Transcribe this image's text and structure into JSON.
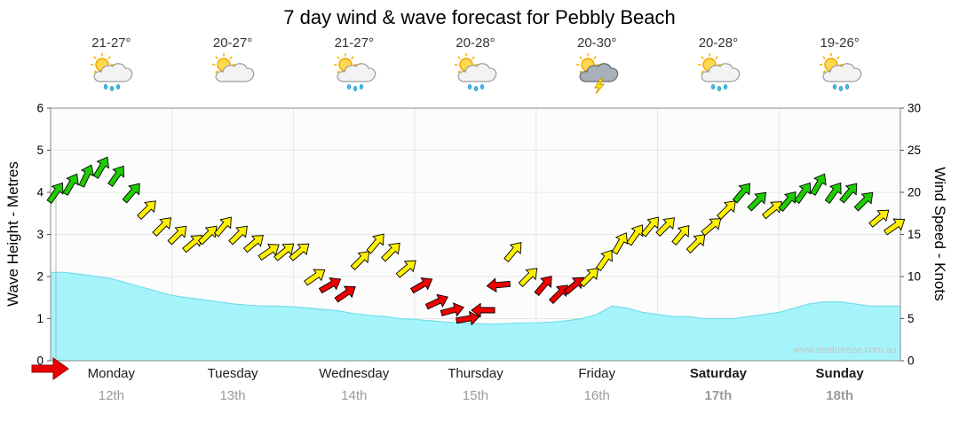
{
  "title": "7 day wind & wave forecast for Pebbly Beach",
  "watermark": "www.seabreeze.com.au",
  "axes": {
    "left_label": "Wave Height - Metres",
    "right_label": "Wind Speed - Knots",
    "left_ticks": [
      0,
      1,
      2,
      3,
      4,
      5,
      6
    ],
    "right_ticks": [
      0,
      5,
      10,
      15,
      20,
      25,
      30
    ],
    "left_max": 6,
    "right_max": 30
  },
  "days": [
    {
      "name": "Monday",
      "date": "12th",
      "temp": "21-27°",
      "icon": "sun-cloud-rain",
      "weekend": false
    },
    {
      "name": "Tuesday",
      "date": "13th",
      "temp": "20-27°",
      "icon": "sun-cloud",
      "weekend": false
    },
    {
      "name": "Wednesday",
      "date": "14th",
      "temp": "21-27°",
      "icon": "sun-cloud-rain",
      "weekend": false
    },
    {
      "name": "Thursday",
      "date": "15th",
      "temp": "20-28°",
      "icon": "sun-cloud-rain",
      "weekend": false
    },
    {
      "name": "Friday",
      "date": "16th",
      "temp": "20-30°",
      "icon": "storm",
      "weekend": false
    },
    {
      "name": "Saturday",
      "date": "17th",
      "temp": "20-28°",
      "icon": "sun-cloud-rain",
      "weekend": true
    },
    {
      "name": "Sunday",
      "date": "18th",
      "temp": "19-26°",
      "icon": "sun-cloud-rain",
      "weekend": true
    }
  ],
  "marker": {
    "shape": "red-arrow-right",
    "color": "#E80000"
  },
  "chart_data": {
    "type": "line",
    "title": "7 day wind & wave forecast for Pebbly Beach",
    "points_per_day": 8,
    "x_days": [
      "Monday 12th",
      "Tuesday 13th",
      "Wednesday 14th",
      "Thursday 15th",
      "Friday 16th",
      "Saturday 17th",
      "Sunday 18th"
    ],
    "series": [
      {
        "name": "Wind Speed",
        "unit": "knots",
        "style": "wind-arrows",
        "ylim": [
          0,
          30
        ],
        "values": [
          20,
          21,
          22,
          23,
          22,
          20,
          18,
          16,
          15,
          14,
          15,
          16,
          15,
          14,
          13,
          13,
          13,
          10,
          9,
          8,
          12,
          14,
          13,
          11,
          9,
          7,
          6,
          5,
          6,
          9,
          13,
          10,
          9,
          8,
          9,
          10,
          12,
          14,
          15,
          16,
          16,
          15,
          14,
          16,
          18,
          20,
          19,
          18,
          19,
          20,
          21,
          20,
          20,
          19,
          17,
          16
        ],
        "directions_deg": [
          -55,
          -60,
          -65,
          -60,
          -55,
          -50,
          -45,
          -45,
          -45,
          -40,
          -45,
          -50,
          -45,
          -40,
          -35,
          -40,
          -40,
          -35,
          -30,
          -35,
          -45,
          -50,
          -45,
          -40,
          -30,
          -25,
          -15,
          -10,
          180,
          175,
          -50,
          -45,
          -50,
          -45,
          -40,
          -45,
          -55,
          -60,
          -55,
          -50,
          -45,
          -50,
          -45,
          -40,
          -45,
          -50,
          -45,
          -40,
          -50,
          -55,
          -60,
          -55,
          -50,
          -45,
          -40,
          -35
        ],
        "colors": {
          "green": "#1FCC00",
          "yellow": "#FFF000",
          "red": "#F00000"
        },
        "color_rules": {
          "green_min_knots": 19,
          "red_max_knots": 9
        }
      },
      {
        "name": "Wave Height",
        "unit": "metres",
        "style": "area",
        "ylim": [
          0,
          6
        ],
        "values": [
          2.1,
          2.1,
          2.05,
          2.0,
          1.95,
          1.85,
          1.75,
          1.65,
          1.55,
          1.5,
          1.45,
          1.4,
          1.35,
          1.32,
          1.3,
          1.3,
          1.28,
          1.25,
          1.22,
          1.18,
          1.12,
          1.08,
          1.05,
          1.0,
          0.98,
          0.95,
          0.92,
          0.9,
          0.88,
          0.87,
          0.88,
          0.9,
          0.9,
          0.92,
          0.95,
          1.0,
          1.1,
          1.3,
          1.25,
          1.15,
          1.1,
          1.05,
          1.05,
          1.0,
          1.0,
          1.0,
          1.05,
          1.1,
          1.15,
          1.25,
          1.35,
          1.4,
          1.4,
          1.35,
          1.3,
          1.3,
          1.3
        ],
        "fill": "#A6F4FB",
        "edge": "#74DDE9"
      }
    ],
    "grid": true,
    "legend": "none"
  }
}
